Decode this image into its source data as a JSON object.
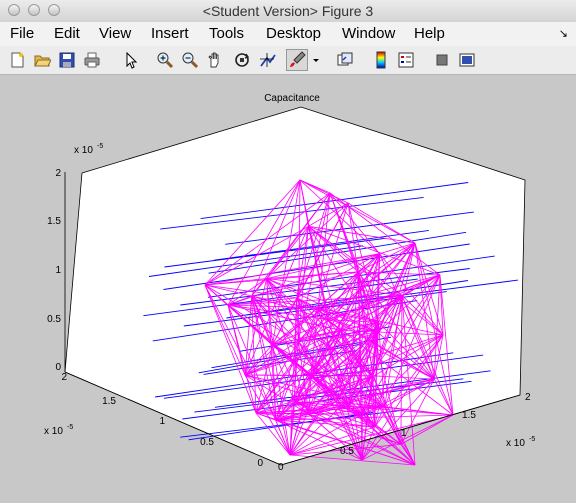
{
  "window": {
    "title": "<Student Version> Figure 3"
  },
  "menu": {
    "items": [
      "File",
      "Edit",
      "View",
      "Insert",
      "Tools",
      "Desktop",
      "Window",
      "Help"
    ],
    "overflow_arrow": "↘"
  },
  "toolbar": {
    "icons": [
      "new-figure-icon",
      "open-file-icon",
      "save-icon",
      "print-icon",
      "pointer-icon",
      "zoom-in-icon",
      "zoom-out-icon",
      "pan-icon",
      "rotate-3d-icon",
      "data-cursor-icon",
      "brush-icon",
      "brush-dropdown-icon",
      "link-plot-icon",
      "colorbar-icon",
      "legend-icon",
      "hide-plot-tools-icon",
      "show-plot-tools-icon"
    ]
  },
  "chart_data": {
    "type": "scatter",
    "title": "Capacitance",
    "axes": {
      "x": {
        "ticks": [
          "0",
          "0.5",
          "1",
          "1.5",
          "2"
        ],
        "multiplier": "x 10",
        "exponent": "-5"
      },
      "y": {
        "ticks": [
          "0",
          "0.5",
          "1",
          "1.5",
          "2"
        ],
        "multiplier": "x 10",
        "exponent": "-5"
      },
      "z": {
        "ticks": [
          "0",
          "0.5",
          "1",
          "1.5",
          "2"
        ],
        "multiplier": "x 10",
        "exponent": "-5"
      }
    },
    "series": [
      {
        "color": "#ff00ff"
      },
      {
        "color": "#0000ff"
      }
    ]
  }
}
